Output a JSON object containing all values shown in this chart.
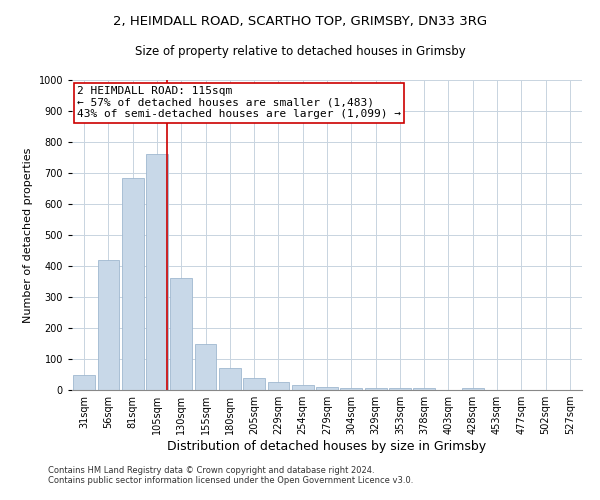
{
  "title_line1": "2, HEIMDALL ROAD, SCARTHO TOP, GRIMSBY, DN33 3RG",
  "title_line2": "Size of property relative to detached houses in Grimsby",
  "xlabel": "Distribution of detached houses by size in Grimsby",
  "ylabel": "Number of detached properties",
  "bar_categories": [
    "31sqm",
    "56sqm",
    "81sqm",
    "105sqm",
    "130sqm",
    "155sqm",
    "180sqm",
    "205sqm",
    "229sqm",
    "254sqm",
    "279sqm",
    "304sqm",
    "329sqm",
    "353sqm",
    "378sqm",
    "403sqm",
    "428sqm",
    "453sqm",
    "477sqm",
    "502sqm",
    "527sqm"
  ],
  "bar_values": [
    48,
    420,
    685,
    760,
    360,
    150,
    72,
    38,
    25,
    17,
    10,
    5,
    5,
    5,
    5,
    0,
    8,
    0,
    0,
    0,
    0
  ],
  "bar_color": "#c8d8e8",
  "bar_edge_color": "#a0b8d0",
  "vline_color": "#cc0000",
  "annotation_title": "2 HEIMDALL ROAD: 115sqm",
  "annotation_line1": "← 57% of detached houses are smaller (1,483)",
  "annotation_line2": "43% of semi-detached houses are larger (1,099) →",
  "annotation_box_color": "#ffffff",
  "annotation_box_edgecolor": "#cc0000",
  "ylim": [
    0,
    1000
  ],
  "yticks": [
    0,
    100,
    200,
    300,
    400,
    500,
    600,
    700,
    800,
    900,
    1000
  ],
  "footer_line1": "Contains HM Land Registry data © Crown copyright and database right 2024.",
  "footer_line2": "Contains public sector information licensed under the Open Government Licence v3.0.",
  "background_color": "#ffffff",
  "grid_color": "#c8d4e0",
  "title_fontsize": 9.5,
  "subtitle_fontsize": 8.5,
  "ylabel_fontsize": 8,
  "xlabel_fontsize": 9,
  "tick_fontsize": 7,
  "annotation_fontsize": 8,
  "footer_fontsize": 6
}
